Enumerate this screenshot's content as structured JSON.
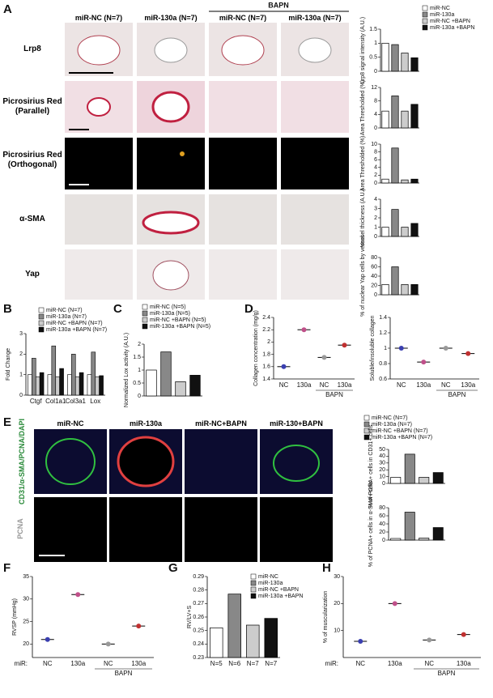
{
  "panel_labels": [
    "A",
    "B",
    "C",
    "D",
    "E",
    "F",
    "G",
    "H"
  ],
  "panel_a": {
    "bapn": "BAPN",
    "columns": [
      "miR-NC (N=7)",
      "miR-130a (N=7)",
      "miR-NC (N=7)",
      "miR-130a (N=7)"
    ],
    "rows": [
      "Lrp8",
      "Picrosirius Red (Parallel)",
      "Picrosirius Red (Orthogonal)",
      "α-SMA",
      "Yap"
    ],
    "legend": [
      "miR-NC",
      "miR-130a",
      "miR-NC +BAPN",
      "miR-130a +BAPN"
    ]
  },
  "panel_e": {
    "columns": [
      "miR-NC",
      "miR-130a",
      "miR-NC+BAPN",
      "miR-130+BAPN"
    ],
    "rows": [
      "CD31/α-SMA/PCNA/DAPI",
      "PCNA"
    ],
    "legend": [
      "miR-NC (N=7)",
      "miR-130a (N=7)",
      "miR-NC +BAPN (N=7)",
      "miR-130a +BAPN (N=7)"
    ]
  },
  "chart_data": [
    {
      "type": "bar",
      "ylabel": "Lrp8 signal intensity (A.U.)",
      "values": [
        1.0,
        0.95,
        0.65,
        0.48
      ],
      "colors": [
        "#ffffff",
        "#888888",
        "#cccccc",
        "#111111"
      ],
      "ylim": [
        0,
        1.5
      ],
      "yticks": [
        0,
        0.5,
        1,
        1.5
      ]
    },
    {
      "type": "bar",
      "ylabel": "Area Thresholded (%)",
      "values": [
        5,
        9.5,
        5,
        7
      ],
      "colors": [
        "#ffffff",
        "#888888",
        "#cccccc",
        "#111111"
      ],
      "ylim": [
        0,
        12
      ],
      "yticks": [
        0,
        4,
        8,
        12
      ]
    },
    {
      "type": "bar",
      "ylabel": "Area Thresholded (%)",
      "values": [
        1,
        9,
        0.8,
        1
      ],
      "colors": [
        "#ffffff",
        "#888888",
        "#cccccc",
        "#111111"
      ],
      "ylim": [
        0,
        10
      ],
      "yticks": [
        0,
        2,
        4,
        6,
        8,
        10
      ]
    },
    {
      "type": "bar",
      "ylabel": "Vessel thickness (A.U.)",
      "values": [
        1,
        2.9,
        1,
        1.4
      ],
      "colors": [
        "#ffffff",
        "#888888",
        "#cccccc",
        "#111111"
      ],
      "ylim": [
        0,
        4
      ],
      "yticks": [
        0,
        1,
        2,
        3,
        4
      ]
    },
    {
      "type": "bar",
      "ylabel": "% of nuclear Yap cells by vessel",
      "values": [
        22,
        60,
        22,
        22
      ],
      "colors": [
        "#ffffff",
        "#888888",
        "#cccccc",
        "#111111"
      ],
      "ylim": [
        0,
        80
      ],
      "yticks": [
        0,
        20,
        40,
        60,
        80
      ]
    },
    {
      "type": "grouped-bar",
      "ylabel": "Fold Change",
      "categories": [
        "Ctgf",
        "Col1a1",
        "Col3a1",
        "Lox"
      ],
      "ylim": [
        0,
        3
      ],
      "yticks": [
        0,
        1,
        2,
        3
      ],
      "series": [
        {
          "name": "miR-NC (N=7)",
          "color": "#ffffff",
          "values": [
            1,
            1,
            1,
            1
          ]
        },
        {
          "name": "miR-130a (N=7)",
          "color": "#888888",
          "values": [
            1.8,
            2.4,
            2.0,
            2.1
          ]
        },
        {
          "name": "miR-NC +BAPN (N=7)",
          "color": "#cccccc",
          "values": [
            0.9,
            0.9,
            0.9,
            0.9
          ]
        },
        {
          "name": "miR-130a +BAPN (N=7)",
          "color": "#111111",
          "values": [
            1.1,
            1.3,
            1.1,
            0.95
          ]
        }
      ]
    },
    {
      "type": "bar",
      "ylabel": "Normalized Lox activity (A.U.)",
      "values": [
        1.0,
        1.7,
        0.55,
        0.8
      ],
      "colors": [
        "#ffffff",
        "#888888",
        "#cccccc",
        "#111111"
      ],
      "legend": [
        "miR-NC (N=5)",
        "miR-130a (N=5)",
        "miR-NC +BAPN (N=5)",
        "miR-130a +BAPN (N=5)"
      ],
      "ylim": [
        0,
        2
      ],
      "yticks": [
        0,
        0.5,
        1,
        1.5,
        2
      ]
    },
    {
      "type": "dot",
      "ylabel": "Collagen concentration (mg/g)",
      "categories": [
        "NC",
        "130a",
        "NC",
        "130a"
      ],
      "group_label": "BAPN",
      "values": [
        1.6,
        2.2,
        1.75,
        1.95
      ],
      "colors": [
        "#3a3fb0",
        "#c0508a",
        "#999999",
        "#c03030"
      ],
      "ylim": [
        1.4,
        2.4
      ],
      "yticks": [
        1.4,
        1.6,
        1.8,
        2,
        2.2,
        2.4
      ]
    },
    {
      "type": "dot",
      "ylabel": "Soluble/insoluble collagen",
      "categories": [
        "NC",
        "130a",
        "NC",
        "130a"
      ],
      "group_label": "BAPN",
      "values": [
        1.0,
        0.82,
        1.0,
        0.93
      ],
      "colors": [
        "#3a3fb0",
        "#c0508a",
        "#999999",
        "#c03030"
      ],
      "ylim": [
        0.6,
        1.4
      ],
      "yticks": [
        0.6,
        0.8,
        1,
        1.2,
        1.4
      ]
    },
    {
      "type": "bar",
      "ylabel": "% of PCNA+ cells in CD31+ cells",
      "values": [
        9,
        43,
        9,
        16
      ],
      "colors": [
        "#ffffff",
        "#888888",
        "#cccccc",
        "#111111"
      ],
      "ylim": [
        0,
        50
      ],
      "yticks": [
        0,
        10,
        20,
        30,
        40,
        50
      ]
    },
    {
      "type": "bar",
      "ylabel": "% of PCNA+ cells in α-SMA+ cells",
      "values": [
        4,
        69,
        5,
        31
      ],
      "colors": [
        "#ffffff",
        "#888888",
        "#cccccc",
        "#111111"
      ],
      "ylim": [
        0,
        80
      ],
      "yticks": [
        0,
        20,
        40,
        60,
        80
      ]
    },
    {
      "type": "dot",
      "ylabel": "RVSP (mmHg)",
      "x_prefix": "miR:",
      "categories": [
        "NC",
        "130a",
        "NC",
        "130a"
      ],
      "group_label": "BAPN",
      "values": [
        21,
        31,
        20,
        24
      ],
      "colors": [
        "#3a3fb0",
        "#c0508a",
        "#999999",
        "#c03030"
      ],
      "ylim": [
        17,
        35
      ],
      "yticks": [
        20,
        25,
        30,
        35
      ]
    },
    {
      "type": "bar",
      "ylabel": "RV/LV+S",
      "categories": [
        "N=5",
        "N=6",
        "N=7",
        "N=7"
      ],
      "values": [
        0.252,
        0.277,
        0.254,
        0.259
      ],
      "colors": [
        "#ffffff",
        "#888888",
        "#cccccc",
        "#111111"
      ],
      "legend": [
        "miR-NC",
        "miR-130a",
        "miR-NC +BAPN",
        "miR-130a +BAPN"
      ],
      "ylim": [
        0.23,
        0.29
      ],
      "yticks": [
        0.23,
        0.24,
        0.25,
        0.26,
        0.27,
        0.28,
        0.29
      ]
    },
    {
      "type": "dot",
      "ylabel": "% of muscularization",
      "x_prefix": "miR:",
      "categories": [
        "NC",
        "130a",
        "NC",
        "130a"
      ],
      "group_label": "BAPN",
      "values": [
        6,
        20,
        6.5,
        8.5
      ],
      "colors": [
        "#3a3fb0",
        "#c0508a",
        "#999999",
        "#c03030"
      ],
      "ylim": [
        0,
        30
      ],
      "yticks": [
        10,
        20,
        30
      ]
    }
  ]
}
